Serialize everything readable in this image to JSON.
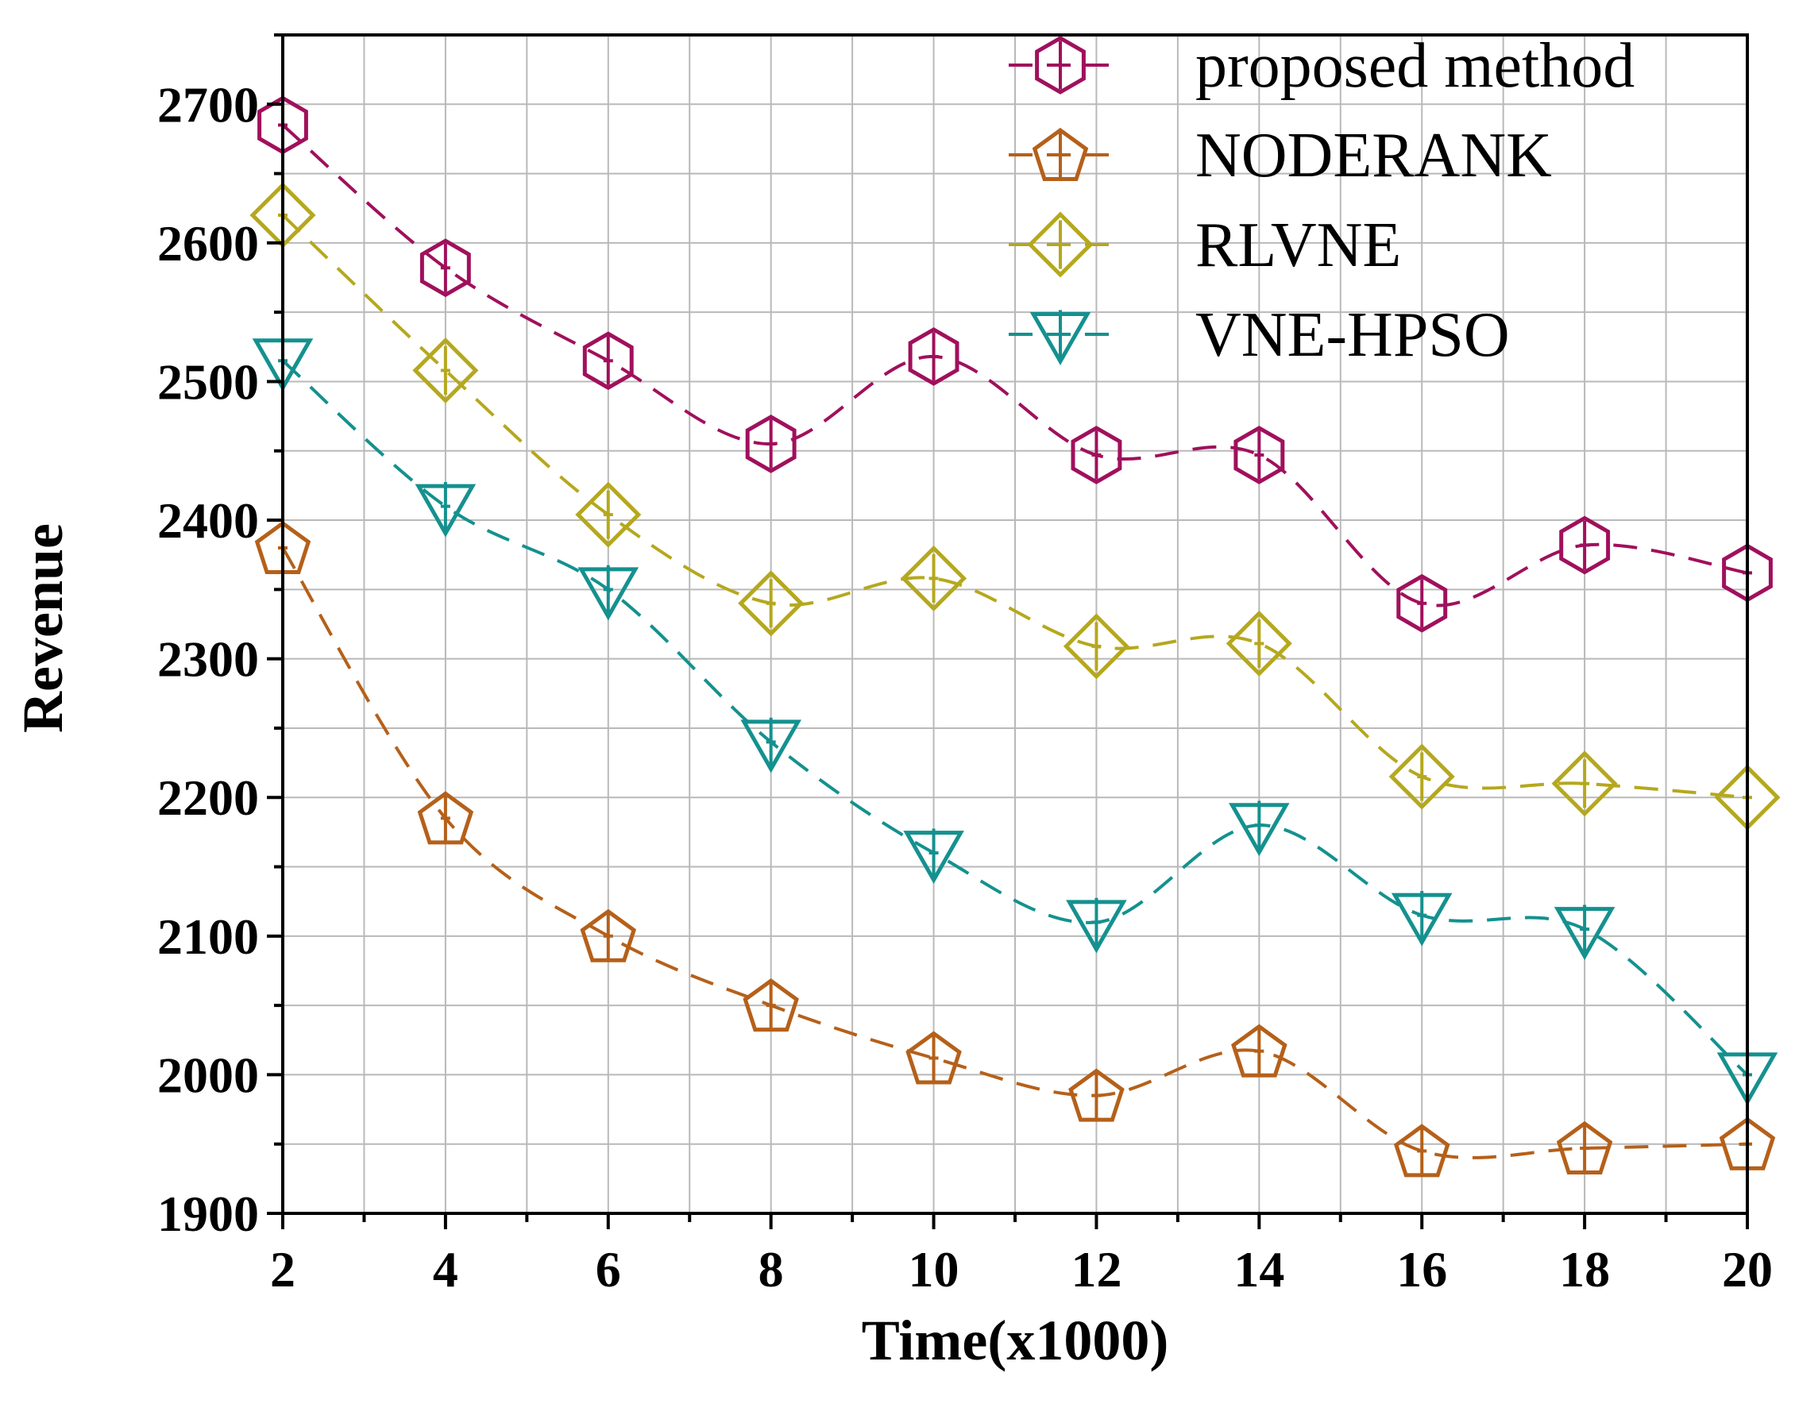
{
  "chart_data": {
    "type": "line",
    "title": "",
    "xlabel": "Time(x1000)",
    "ylabel": "Revenue",
    "x": [
      2,
      4,
      6,
      8,
      10,
      12,
      14,
      16,
      18,
      20
    ],
    "xlim": [
      2,
      20
    ],
    "ylim": [
      1900,
      2750
    ],
    "xticks": [
      "2",
      "4",
      "6",
      "8",
      "10",
      "12",
      "14",
      "16",
      "18",
      "20"
    ],
    "yticks": [
      "1900",
      "2000",
      "2100",
      "2200",
      "2300",
      "2400",
      "2500",
      "2600",
      "2700"
    ],
    "grid": true,
    "legend_position": "top-right",
    "series": [
      {
        "name": "proposed method",
        "color": "#A0105C",
        "marker": "hexagon",
        "values": [
          2685,
          2582,
          2515,
          2455,
          2518,
          2447,
          2447,
          2340,
          2382,
          2362
        ]
      },
      {
        "name": "NODERANK",
        "color": "#B5601A",
        "marker": "pentagon",
        "values": [
          2380,
          2185,
          2100,
          2050,
          2012,
          1985,
          2017,
          1945,
          1947,
          1950
        ]
      },
      {
        "name": "RLVNE",
        "color": "#B5A81E",
        "marker": "diamond",
        "values": [
          2620,
          2508,
          2404,
          2340,
          2358,
          2309,
          2311,
          2215,
          2210,
          2200
        ]
      },
      {
        "name": "VNE-HPSO",
        "color": "#14918F",
        "marker": "triangle-down",
        "values": [
          2515,
          2410,
          2350,
          2240,
          2160,
          2110,
          2180,
          2115,
          2105,
          2000
        ]
      }
    ]
  }
}
